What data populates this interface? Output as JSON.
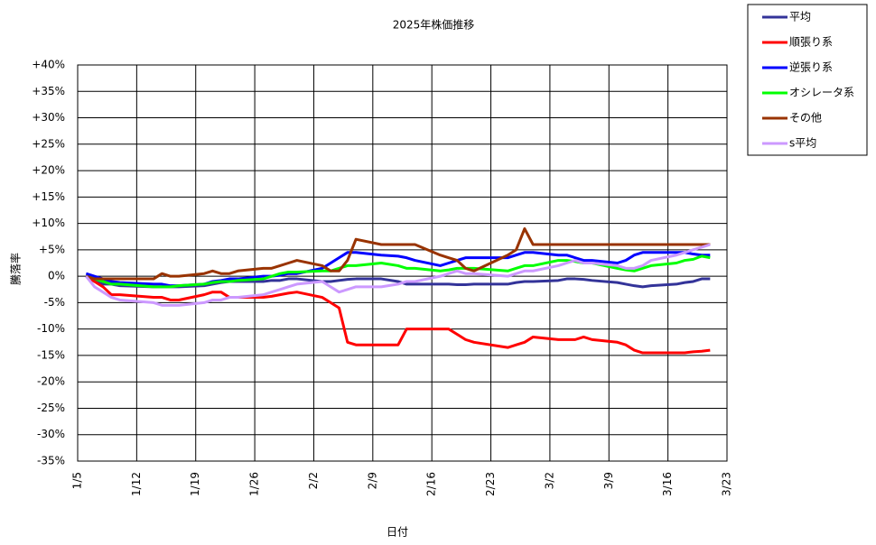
{
  "chart_data": {
    "type": "line",
    "title": "2025年株価推移",
    "x_label": "日付",
    "y_label": "騰落率",
    "xlim": [
      0,
      77
    ],
    "xticks": [
      {
        "value": 0,
        "label": "1/5"
      },
      {
        "value": 7,
        "label": "1/12"
      },
      {
        "value": 14,
        "label": "1/19"
      },
      {
        "value": 21,
        "label": "1/26"
      },
      {
        "value": 28,
        "label": "2/2"
      },
      {
        "value": 35,
        "label": "2/9"
      },
      {
        "value": 42,
        "label": "2/16"
      },
      {
        "value": 49,
        "label": "2/23"
      },
      {
        "value": 56,
        "label": "3/2"
      },
      {
        "value": 63,
        "label": "3/9"
      },
      {
        "value": 70,
        "label": "3/16"
      },
      {
        "value": 77,
        "label": "3/23"
      }
    ],
    "ylim": [
      -35,
      40
    ],
    "yticks": [
      {
        "value": 40,
        "label": "+40%"
      },
      {
        "value": 35,
        "label": "+35%"
      },
      {
        "value": 30,
        "label": "+30%"
      },
      {
        "value": 25,
        "label": "+25%"
      },
      {
        "value": 20,
        "label": "+20%"
      },
      {
        "value": 15,
        "label": "+15%"
      },
      {
        "value": 10,
        "label": "+10%"
      },
      {
        "value": 5,
        "label": "+5%"
      },
      {
        "value": 0,
        "label": "0%"
      },
      {
        "value": -5,
        "label": "-5%"
      },
      {
        "value": -10,
        "label": "-10%"
      },
      {
        "value": -15,
        "label": "-15%"
      },
      {
        "value": -20,
        "label": "-20%"
      },
      {
        "value": -25,
        "label": "-25%"
      },
      {
        "value": -30,
        "label": "-30%"
      },
      {
        "value": -35,
        "label": "-35%"
      }
    ],
    "grid": true,
    "legend": "outside-top-right",
    "x": [
      1,
      2,
      3,
      4,
      5,
      9,
      10,
      11,
      12,
      15,
      16,
      17,
      18,
      19,
      22,
      23,
      24,
      25,
      26,
      29,
      30,
      31,
      32,
      33,
      36,
      38,
      39,
      40,
      43,
      44,
      45,
      46,
      47,
      51,
      52,
      53,
      54,
      57,
      58,
      59,
      60,
      61,
      64,
      65,
      66,
      67,
      68,
      71,
      72,
      73,
      74,
      75
    ],
    "series": [
      {
        "name": "平均",
        "color": "#333399",
        "values": [
          0,
          -1,
          -1.5,
          -1.5,
          -1.8,
          -2,
          -2,
          -2,
          -2,
          -1.8,
          -1.5,
          -1.2,
          -1,
          -1,
          -1,
          -0.8,
          -0.8,
          -0.5,
          -0.5,
          -1,
          -1,
          -0.8,
          -0.6,
          -0.5,
          -0.5,
          -1,
          -1.5,
          -1.5,
          -1.5,
          -1.5,
          -1.6,
          -1.6,
          -1.5,
          -1.5,
          -1.2,
          -1,
          -1,
          -0.8,
          -0.5,
          -0.5,
          -0.6,
          -0.8,
          -1.2,
          -1.5,
          -1.8,
          -2,
          -1.8,
          -1.5,
          -1.2,
          -1,
          -0.5,
          -0.5
        ]
      },
      {
        "name": "順張り系",
        "color": "#ff0000",
        "values": [
          0,
          -1,
          -2,
          -3.5,
          -3.5,
          -4,
          -4,
          -4.5,
          -4.5,
          -3.5,
          -3,
          -3,
          -4,
          -4,
          -4,
          -3.8,
          -3.5,
          -3.2,
          -3,
          -4,
          -5,
          -6,
          -12.5,
          -13,
          -13,
          -13,
          -10,
          -10,
          -10,
          -10,
          -11,
          -12,
          -12.5,
          -13.5,
          -13,
          -12.5,
          -11.5,
          -12,
          -12,
          -12,
          -11.5,
          -12,
          -12.5,
          -13,
          -14,
          -14.5,
          -14.5,
          -14.5,
          -14.5,
          -14.3,
          -14.2,
          -14
        ]
      },
      {
        "name": "逆張り系",
        "color": "#0000ff",
        "values": [
          0.5,
          0,
          -0.5,
          -1,
          -1.2,
          -1.5,
          -1.5,
          -1.8,
          -1.8,
          -1.5,
          -1,
          -0.8,
          -0.5,
          -0.5,
          0,
          0,
          0.2,
          0.5,
          0.5,
          1.5,
          2.5,
          3.5,
          4.5,
          4.5,
          4,
          3.8,
          3.5,
          3,
          2,
          2.5,
          3,
          3.5,
          3.5,
          3.5,
          4,
          4.5,
          4.5,
          4,
          4,
          3.5,
          3,
          3,
          2.5,
          3,
          4,
          4.5,
          4.5,
          4.5,
          4.5,
          4.2,
          4,
          4
        ]
      },
      {
        "name": "オシレータ系",
        "color": "#00ff00",
        "values": [
          0,
          -0.5,
          -1,
          -1.5,
          -1.5,
          -2,
          -2,
          -2,
          -1.8,
          -1.5,
          -1.2,
          -1,
          -1,
          -0.8,
          -0.5,
          0,
          0.5,
          0.8,
          0.8,
          1,
          1,
          1.5,
          2,
          2,
          2.5,
          2,
          1.5,
          1.5,
          1,
          1.2,
          1.5,
          1.5,
          1.5,
          1,
          1.5,
          2,
          2,
          3,
          3,
          2.8,
          2.5,
          2.5,
          1.5,
          1.2,
          1,
          1.5,
          2,
          2.5,
          3,
          3.2,
          3.8,
          3.5
        ]
      },
      {
        "name": "その他",
        "color": "#993300",
        "values": [
          0,
          -0.5,
          -0.5,
          -0.5,
          -0.5,
          -0.5,
          0.5,
          0,
          0,
          0.5,
          1,
          0.5,
          0.5,
          1,
          1.5,
          1.5,
          2,
          2.5,
          3,
          2,
          1,
          1,
          3,
          7,
          6,
          6,
          6,
          6,
          4,
          3.5,
          3,
          1.5,
          1,
          4,
          5,
          9,
          6,
          6,
          6,
          6,
          6,
          6,
          6,
          6,
          6,
          6,
          6,
          6,
          6,
          6,
          6,
          6
        ]
      },
      {
        "name": "s平均",
        "color": "#cc99ff",
        "values": [
          0,
          -2,
          -3,
          -4,
          -4.5,
          -5,
          -5.5,
          -5.5,
          -5.5,
          -5,
          -4.5,
          -4.5,
          -4,
          -4,
          -3.5,
          -3,
          -2.5,
          -2,
          -1.5,
          -1,
          -2,
          -3,
          -2.5,
          -2,
          -2,
          -1.5,
          -1,
          -1,
          0,
          0.5,
          1,
          0.5,
          0.5,
          0,
          0.5,
          1,
          1,
          2,
          2.5,
          3,
          2.5,
          2.5,
          2,
          1.5,
          1.5,
          2,
          3,
          4,
          4.5,
          5,
          5.5,
          6
        ]
      }
    ]
  }
}
